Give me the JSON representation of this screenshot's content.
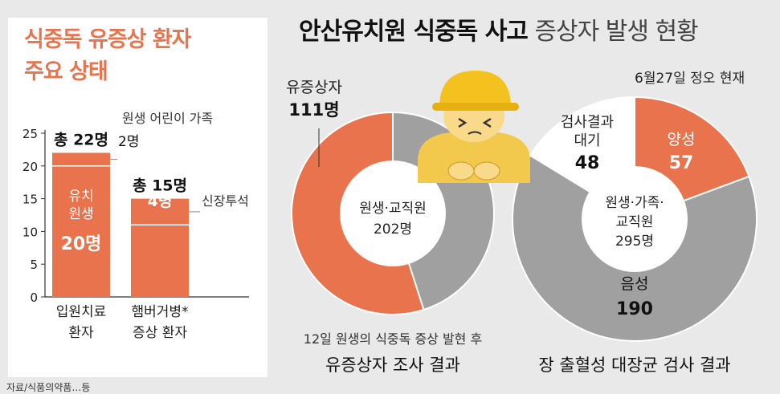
{
  "title": {
    "bold": "안산유치원 식중독 사고",
    "light": "증상자 발생 현황"
  },
  "as_of": "6월27일 정오 현재",
  "footer_note": "자료/식품의약품…등",
  "colors": {
    "accent": "#e8734c",
    "gray": "#a0a0a0",
    "white": "#ffffff",
    "bg": "#e9e9e9"
  },
  "left_panel_title": [
    "식중독 유증상 환자",
    "주요 상태"
  ],
  "chart_data": [
    {
      "type": "bar",
      "stacked": true,
      "title": "식중독 유증상 환자 주요 상태",
      "ylim": [
        0,
        25
      ],
      "yticks": [
        0,
        5,
        10,
        15,
        20,
        25
      ],
      "categories": [
        [
          "입원치료",
          "환자"
        ],
        [
          "햄버거병*",
          "증상 환자"
        ]
      ],
      "totals": [
        22,
        15
      ],
      "total_labels": [
        "총 22명",
        "총 15명"
      ],
      "series": [
        {
          "name": "유치원생",
          "values": [
            20,
            11
          ],
          "labels": [
            "20명",
            ""
          ],
          "inner_name": [
            "유치",
            "원생"
          ]
        },
        {
          "name": "원생 어린이 가족",
          "values": [
            2,
            0
          ],
          "labels": [
            "2명",
            ""
          ]
        },
        {
          "name": "신장투석",
          "values": [
            0,
            4
          ],
          "labels": [
            "",
            "4명"
          ]
        }
      ],
      "callouts": [
        "원생 어린이 가족",
        "신장투석"
      ]
    },
    {
      "type": "pie",
      "center_label": [
        "원생·교직원",
        "202명"
      ],
      "title": [
        "12일 원생의 식중독 증상 발현 후",
        "유증상자 조사 결과"
      ],
      "total": 202,
      "slices": [
        {
          "name": "유증상자",
          "value": 111,
          "label": "111명",
          "color": "#e8734c"
        },
        {
          "name": "",
          "value": 91,
          "label": "",
          "color": "#a0a0a0"
        }
      ]
    },
    {
      "type": "pie",
      "center_label": [
        "원생·가족·",
        "교직원",
        "295명"
      ],
      "title": "장 출혈성 대장균 검사 결과",
      "total": 295,
      "slices": [
        {
          "name": "양성",
          "value": 57,
          "label": "57",
          "color": "#e8734c"
        },
        {
          "name": "음성",
          "value": 190,
          "label": "190",
          "color": "#a0a0a0"
        },
        {
          "name": "검사결과 대기",
          "value": 48,
          "label": "48",
          "color": "#ffffff"
        }
      ]
    }
  ]
}
